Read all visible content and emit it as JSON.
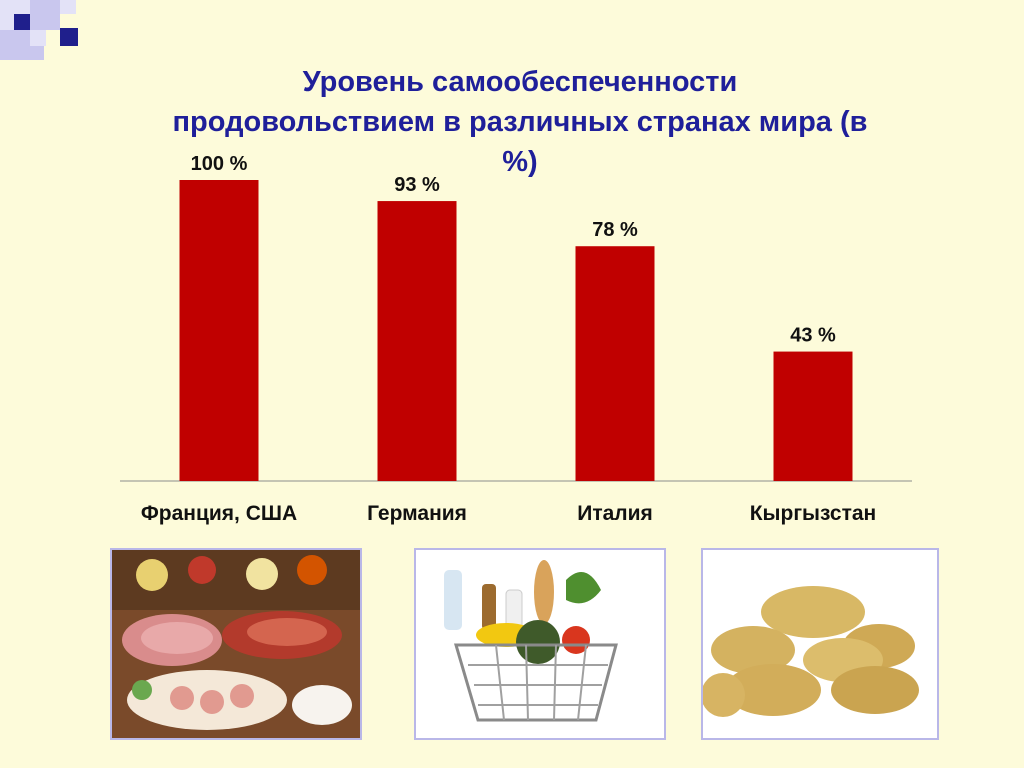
{
  "slide": {
    "title": "Уровень самообеспеченности продовольствием в различных странах мира (в %)",
    "colors": {
      "background": "#FDFBDA",
      "title": "#1F1F9A",
      "bar": "#C00000",
      "axis": "#8C8C8C",
      "photo_border": "#B9B7E8"
    }
  },
  "chart_data": {
    "type": "bar",
    "title": "Уровень самообеспеченности продовольствием в различных странах мира (в %)",
    "categories": [
      "Франция, США",
      "Германия",
      "Италия",
      "Кыргызстан"
    ],
    "values": [
      100,
      93,
      78,
      43
    ],
    "value_labels": [
      "100 %",
      "93 %",
      "78 %",
      "43 %"
    ],
    "xlabel": "",
    "ylabel": "",
    "ylim": [
      0,
      100
    ],
    "grid": false,
    "legend": "none"
  },
  "images": [
    {
      "icon": "deli-food-platter-photo"
    },
    {
      "icon": "grocery-basket-photo"
    },
    {
      "icon": "potatoes-photo"
    }
  ]
}
